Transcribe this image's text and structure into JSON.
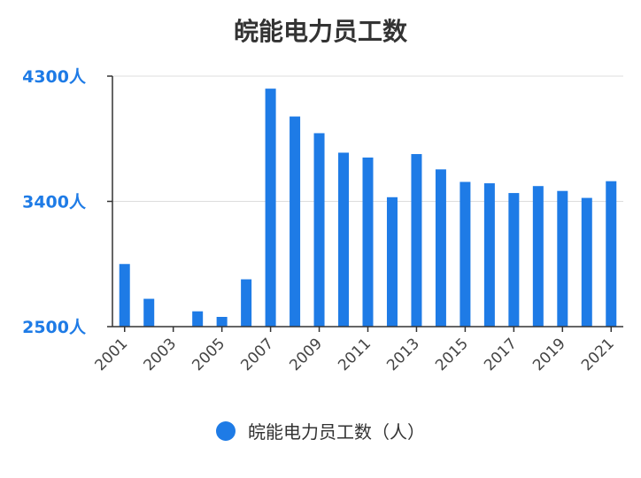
{
  "chart_data": {
    "type": "bar",
    "title": "皖能电力员工数",
    "categories": [
      "2001",
      "2002",
      "2003",
      "2004",
      "2005",
      "2006",
      "2007",
      "2008",
      "2009",
      "2010",
      "2011",
      "2012",
      "2013",
      "2014",
      "2015",
      "2016",
      "2017",
      "2018",
      "2019",
      "2020",
      "2021"
    ],
    "x_tick_labels": [
      "2001",
      "2003",
      "2005",
      "2007",
      "2009",
      "2011",
      "2013",
      "2015",
      "2017",
      "2019",
      "2021"
    ],
    "series": [
      {
        "name": "皖能电力员工数（人）",
        "color": "#1e7be6",
        "values": [
          2950,
          2700,
          2300,
          2610,
          2570,
          2840,
          4210,
          4010,
          3890,
          3750,
          3715,
          3430,
          3740,
          3630,
          3540,
          3530,
          3460,
          3510,
          3475,
          3425,
          3545
        ]
      }
    ],
    "ylim": [
      2500,
      4300
    ],
    "y_ticks": [
      {
        "value": 2500,
        "label": "2500人"
      },
      {
        "value": 3400,
        "label": "3400人"
      },
      {
        "value": 4300,
        "label": "4300人"
      }
    ],
    "grid": true,
    "legend_position": "bottom"
  }
}
